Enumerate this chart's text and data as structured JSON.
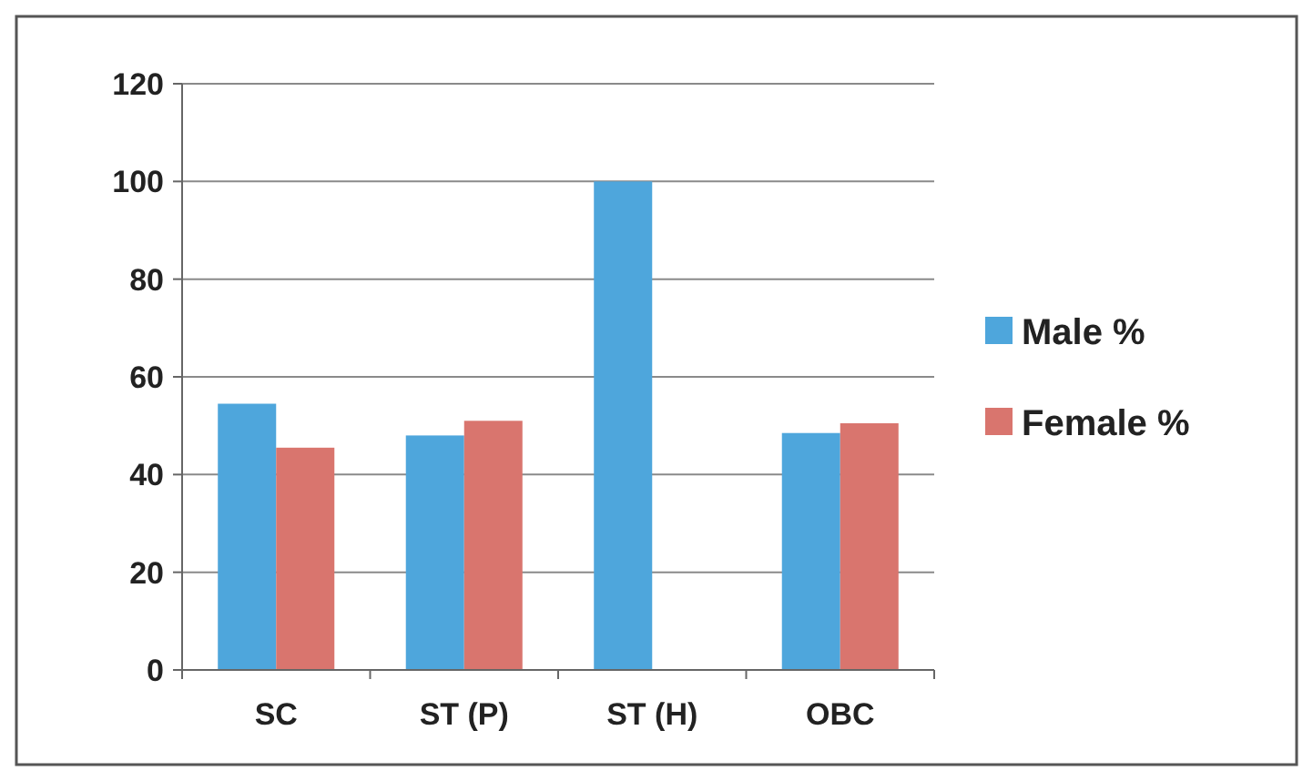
{
  "chart_data": {
    "type": "bar",
    "categories": [
      "SC",
      "ST (P)",
      "ST (H)",
      "OBC"
    ],
    "series": [
      {
        "name": "Male %",
        "color": "#4ea6dc",
        "values": [
          54.5,
          48,
          100,
          48.5
        ]
      },
      {
        "name": "Female %",
        "color": "#d9756e",
        "values": [
          45.5,
          51,
          0,
          50.5
        ]
      }
    ],
    "ylim": [
      0,
      120
    ],
    "yticks": [
      0,
      20,
      40,
      60,
      80,
      100,
      120
    ],
    "grid": "y",
    "legend": "right"
  }
}
